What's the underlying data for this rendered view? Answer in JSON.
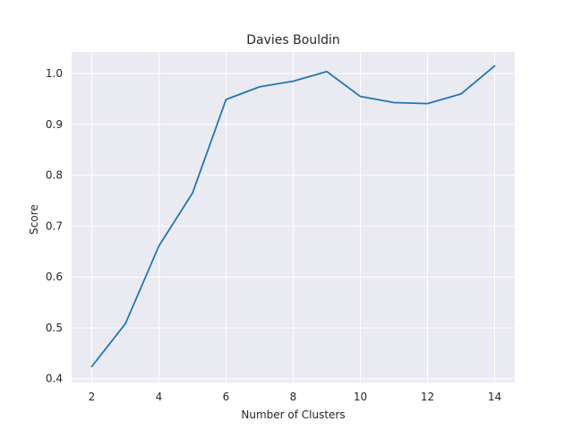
{
  "chart_data": {
    "type": "line",
    "title": "Davies Bouldin",
    "xlabel": "Number of Clusters",
    "ylabel": "Score",
    "xlim": [
      1.4,
      14.6
    ],
    "ylim": [
      0.3925,
      1.0425
    ],
    "x_ticks": [
      2,
      4,
      6,
      8,
      10,
      12,
      14
    ],
    "y_ticks": [
      0.4,
      0.5,
      0.6,
      0.7,
      0.8,
      0.9,
      1.0
    ],
    "y_tick_labels": [
      "0.4",
      "0.5",
      "0.6",
      "0.7",
      "0.8",
      "0.9",
      "1.0"
    ],
    "grid": true,
    "series": [
      {
        "x": [
          2,
          3,
          4,
          5,
          6,
          7,
          8,
          9,
          10,
          11,
          12,
          13,
          14
        ],
        "values": [
          0.424,
          0.508,
          0.661,
          0.765,
          0.949,
          0.974,
          0.985,
          1.004,
          0.955,
          0.943,
          0.941,
          0.96,
          1.015
        ]
      }
    ]
  },
  "colors": {
    "plot_background": "#eaeaf2",
    "grid": "#ffffff",
    "line": "#1f77b4",
    "text": "#262626"
  }
}
